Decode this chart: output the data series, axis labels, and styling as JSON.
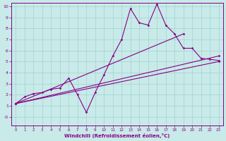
{
  "background_color": "#c8eae8",
  "line_color": "#880088",
  "grid_color": "#99cccc",
  "xlabel": "Windchill (Refroidissement éolien,°C)",
  "xlim": [
    -0.5,
    23.5
  ],
  "ylim": [
    -0.8,
    10.3
  ],
  "xticks": [
    0,
    1,
    2,
    3,
    4,
    5,
    6,
    7,
    8,
    9,
    10,
    11,
    12,
    13,
    14,
    15,
    16,
    17,
    18,
    19,
    20,
    21,
    22,
    23
  ],
  "yticks": [
    0,
    1,
    2,
    3,
    4,
    5,
    6,
    7,
    8,
    9,
    10
  ],
  "ytick_labels": [
    "-0",
    "1",
    "2",
    "3",
    "4",
    "5",
    "6",
    "7",
    "8",
    "9",
    "10"
  ],
  "zigzag_x": [
    0,
    1,
    2,
    3,
    4,
    5,
    6,
    7,
    8,
    9,
    10,
    11,
    12,
    13,
    14,
    15,
    16,
    17,
    18,
    19,
    20,
    21,
    22,
    23
  ],
  "zigzag_y": [
    1.2,
    1.8,
    2.1,
    2.2,
    2.5,
    2.6,
    3.5,
    2.0,
    0.4,
    2.2,
    3.8,
    5.5,
    7.0,
    9.8,
    8.5,
    8.3,
    10.2,
    8.3,
    7.5,
    6.2,
    6.2,
    5.3,
    5.2,
    5.1
  ],
  "line1_x": [
    0,
    19
  ],
  "line1_y": [
    1.2,
    7.5
  ],
  "line2_x": [
    0,
    23
  ],
  "line2_y": [
    1.2,
    5.5
  ],
  "line3_x": [
    0,
    23
  ],
  "line3_y": [
    1.2,
    5.0
  ]
}
